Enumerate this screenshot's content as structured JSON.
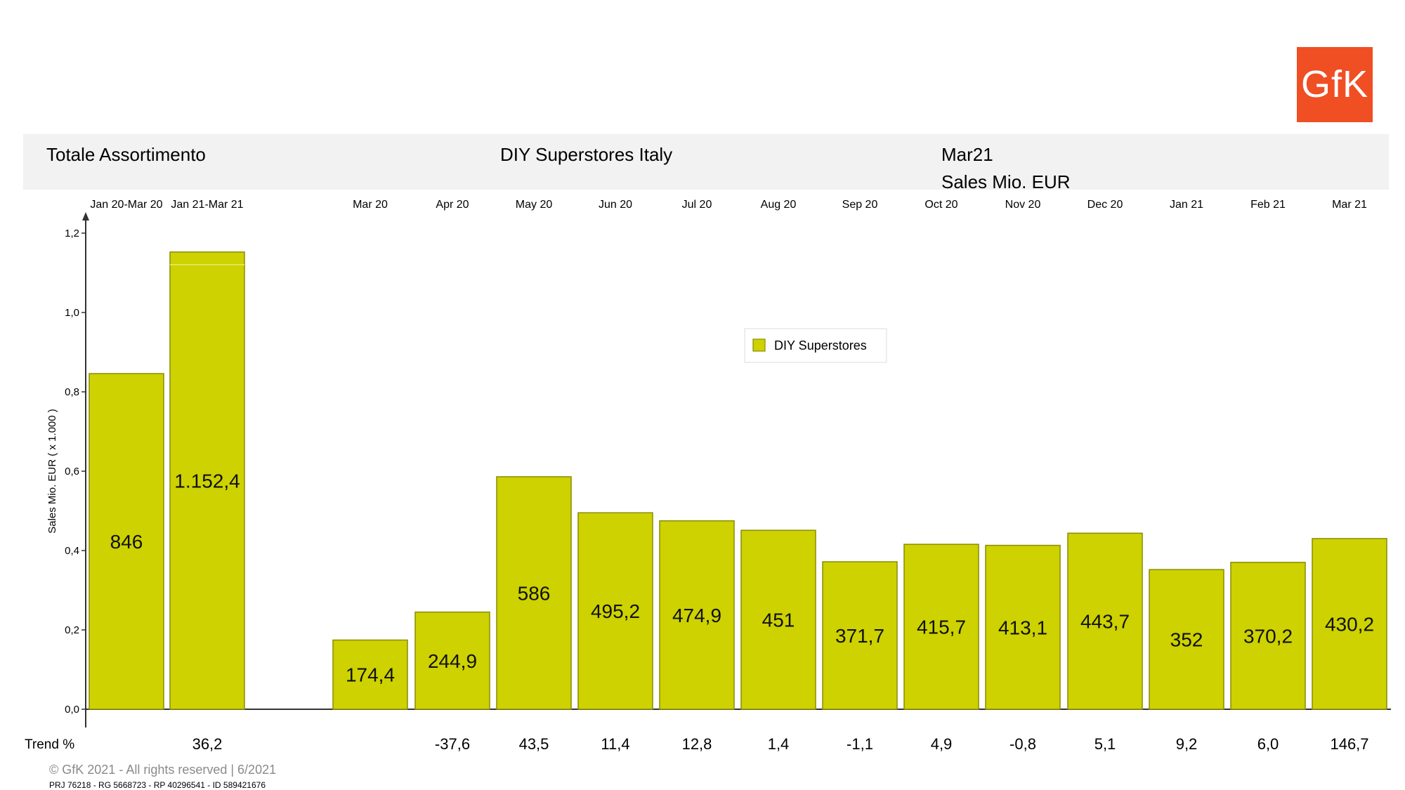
{
  "header": {
    "left": "Totale Assortimento",
    "center": "DIY Superstores Italy",
    "period": "Mar21",
    "measure": "Sales Mio. EUR"
  },
  "logo": {
    "text": "GfK"
  },
  "footer": {
    "copyright": "© GfK 2021 - All rights reserved | 6/2021",
    "ids": "PRJ 76218 - RG 5668723 - RP 40296541 - ID 589421676"
  },
  "colors": {
    "bar": "#cdd200",
    "bar_border": "#8a8c00",
    "header_bg": "#f2f2f2",
    "logo": "#f04e23"
  },
  "chart_data": {
    "type": "bar",
    "ylabel": "Sales Mio. EUR ( x 1.000 )",
    "ylim": [
      0,
      1.2
    ],
    "yticks": [
      "0,0",
      "0,2",
      "0,4",
      "0,6",
      "0,8",
      "1,0",
      "1,2"
    ],
    "grid": false,
    "legend": {
      "label": "DIY Superstores",
      "position": "center-top"
    },
    "trend_label": "Trend %",
    "series": [
      {
        "name": "DIY Superstores",
        "bars": [
          {
            "category": "Jan 20-Mar 20",
            "value": 0.846,
            "label": "846",
            "trend": ""
          },
          {
            "category": "Jan 21-Mar 21",
            "value": 1.1524,
            "label": "1.152,4",
            "trend": "36,2"
          },
          {
            "category": "Mar 20",
            "value": 0.1744,
            "label": "174,4",
            "trend": ""
          },
          {
            "category": "Apr 20",
            "value": 0.2449,
            "label": "244,9",
            "trend": "-37,6"
          },
          {
            "category": "May 20",
            "value": 0.586,
            "label": "586",
            "trend": "43,5"
          },
          {
            "category": "Jun 20",
            "value": 0.4952,
            "label": "495,2",
            "trend": "11,4"
          },
          {
            "category": "Jul 20",
            "value": 0.4749,
            "label": "474,9",
            "trend": "12,8"
          },
          {
            "category": "Aug 20",
            "value": 0.451,
            "label": "451",
            "trend": "1,4"
          },
          {
            "category": "Sep 20",
            "value": 0.3717,
            "label": "371,7",
            "trend": "-1,1"
          },
          {
            "category": "Oct 20",
            "value": 0.4157,
            "label": "415,7",
            "trend": "4,9"
          },
          {
            "category": "Nov 20",
            "value": 0.4131,
            "label": "413,1",
            "trend": "-0,8"
          },
          {
            "category": "Dec 20",
            "value": 0.4437,
            "label": "443,7",
            "trend": "5,1"
          },
          {
            "category": "Jan 21",
            "value": 0.352,
            "label": "352",
            "trend": "9,2"
          },
          {
            "category": "Feb 21",
            "value": 0.3702,
            "label": "370,2",
            "trend": "6,0"
          },
          {
            "category": "Mar 21",
            "value": 0.4302,
            "label": "430,2",
            "trend": "146,7"
          }
        ]
      }
    ]
  }
}
